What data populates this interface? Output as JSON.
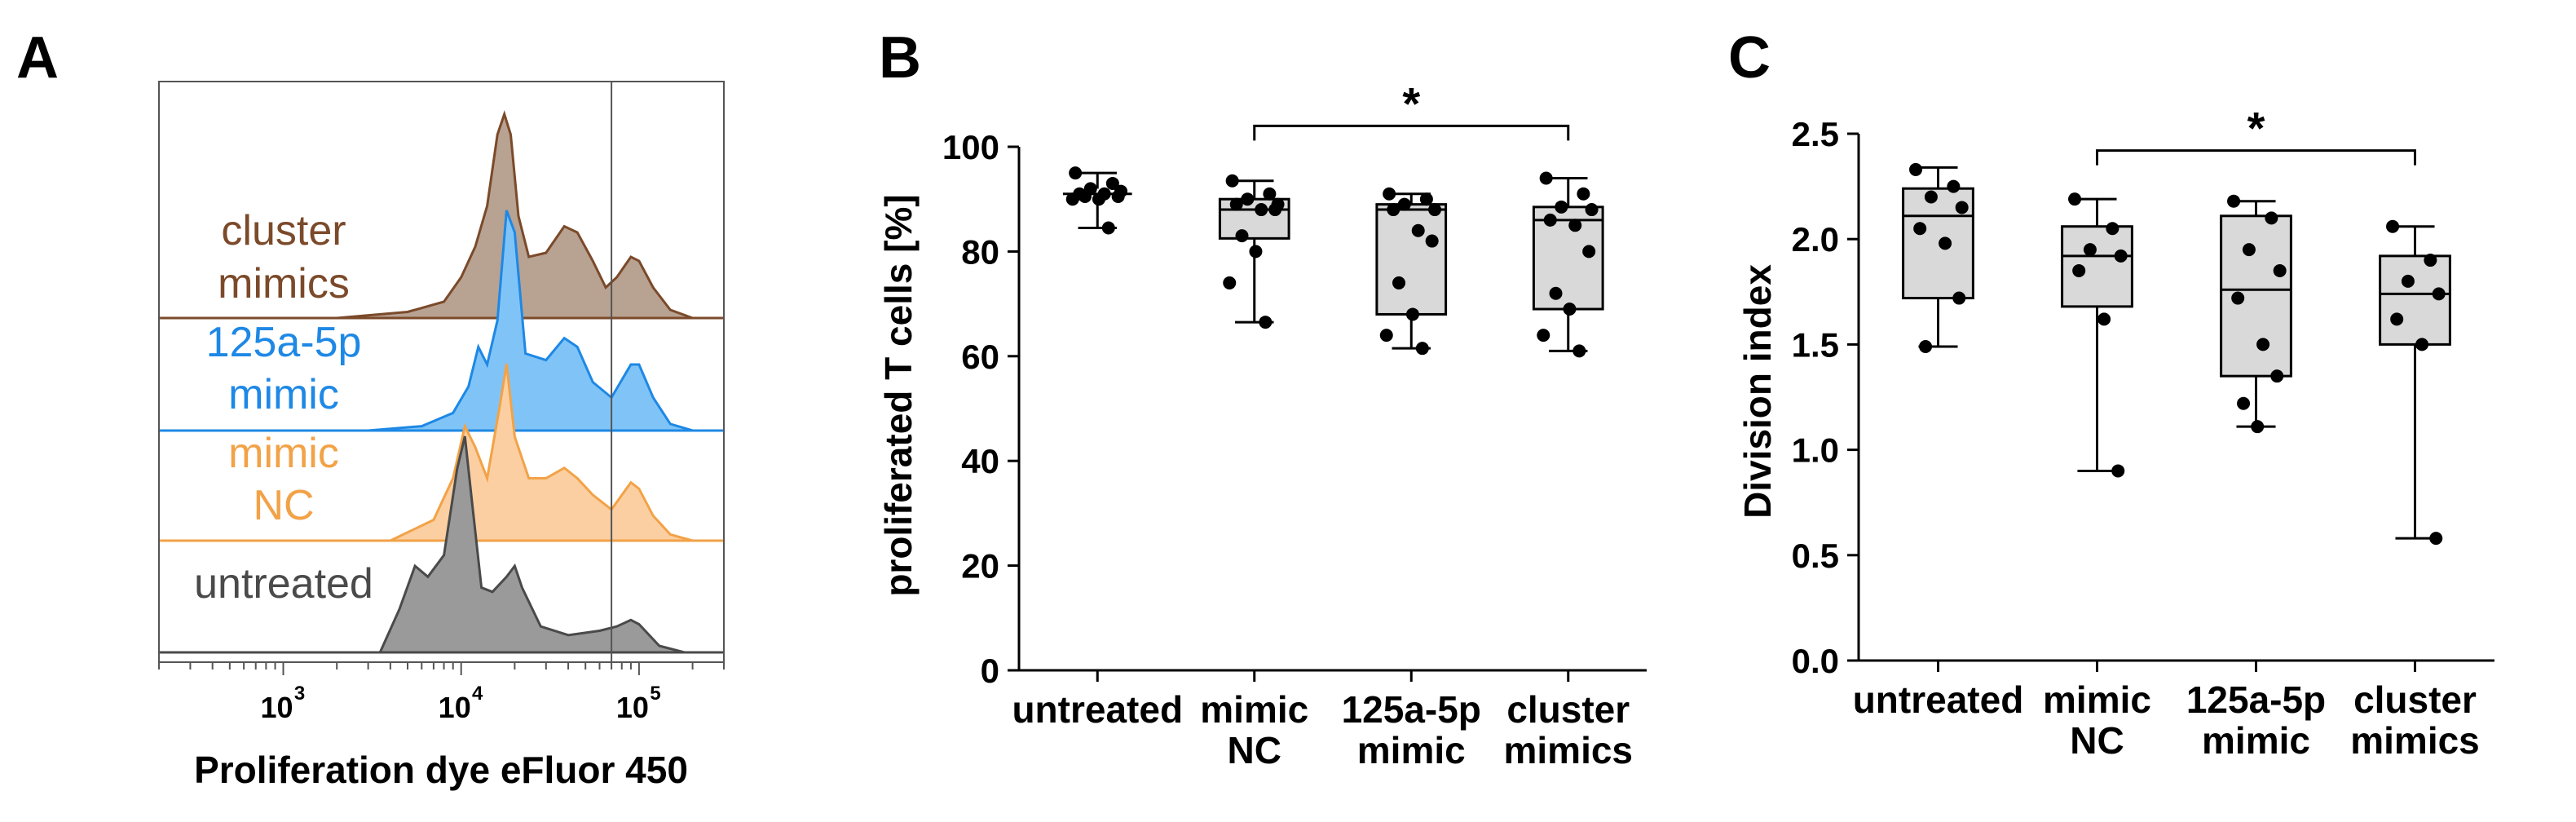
{
  "chart_data": [
    {
      "panel": "A",
      "type": "area",
      "xlabel": "Proliferation dye eFluor 450",
      "x_scale": "log",
      "xlim": [
        200,
        300000
      ],
      "x_ticks": [
        {
          "value": 1000,
          "base": "10",
          "exp": "3"
        },
        {
          "value": 10000,
          "base": "10",
          "exp": "4"
        },
        {
          "value": 100000,
          "base": "10",
          "exp": "5"
        }
      ],
      "gate_x": 70000,
      "series": [
        {
          "name_lines": [
            "cluster",
            "mimics"
          ],
          "color": "#7b4a2a",
          "fill": "#b8a292",
          "points": [
            [
              2000,
              0
            ],
            [
              5000,
              0.03
            ],
            [
              8000,
              0.08
            ],
            [
              10000,
              0.2
            ],
            [
              12000,
              0.35
            ],
            [
              14000,
              0.55
            ],
            [
              16000,
              0.9
            ],
            [
              17500,
              1.0
            ],
            [
              19000,
              0.9
            ],
            [
              21000,
              0.5
            ],
            [
              24000,
              0.3
            ],
            [
              30000,
              0.32
            ],
            [
              38000,
              0.45
            ],
            [
              45000,
              0.42
            ],
            [
              55000,
              0.28
            ],
            [
              65000,
              0.15
            ],
            [
              75000,
              0.2
            ],
            [
              90000,
              0.3
            ],
            [
              100000,
              0.28
            ],
            [
              120000,
              0.15
            ],
            [
              150000,
              0.04
            ],
            [
              200000,
              0
            ]
          ]
        },
        {
          "name_lines": [
            "125a-5p",
            "mimic"
          ],
          "color": "#1e88e5",
          "fill": "#80c4f7",
          "points": [
            [
              3000,
              0
            ],
            [
              6000,
              0.02
            ],
            [
              9000,
              0.08
            ],
            [
              11000,
              0.2
            ],
            [
              12500,
              0.38
            ],
            [
              14000,
              0.3
            ],
            [
              16000,
              0.5
            ],
            [
              18000,
              1.0
            ],
            [
              20000,
              0.9
            ],
            [
              23000,
              0.35
            ],
            [
              30000,
              0.32
            ],
            [
              38000,
              0.42
            ],
            [
              45000,
              0.38
            ],
            [
              55000,
              0.22
            ],
            [
              70000,
              0.15
            ],
            [
              90000,
              0.3
            ],
            [
              100000,
              0.3
            ],
            [
              120000,
              0.15
            ],
            [
              150000,
              0.03
            ],
            [
              200000,
              0
            ]
          ]
        },
        {
          "name_lines": [
            "mimic",
            "NC"
          ],
          "color": "#f2a247",
          "fill": "#fbcfa2",
          "points": [
            [
              4000,
              0
            ],
            [
              7000,
              0.1
            ],
            [
              9000,
              0.3
            ],
            [
              10500,
              0.55
            ],
            [
              12000,
              0.45
            ],
            [
              14000,
              0.3
            ],
            [
              16500,
              0.65
            ],
            [
              18000,
              0.85
            ],
            [
              20000,
              0.5
            ],
            [
              24000,
              0.3
            ],
            [
              30000,
              0.3
            ],
            [
              38000,
              0.35
            ],
            [
              45000,
              0.3
            ],
            [
              55000,
              0.22
            ],
            [
              70000,
              0.15
            ],
            [
              90000,
              0.28
            ],
            [
              100000,
              0.25
            ],
            [
              120000,
              0.12
            ],
            [
              150000,
              0.03
            ],
            [
              200000,
              0
            ]
          ]
        },
        {
          "name_lines": [
            "untreated"
          ],
          "color": "#4a4a4a",
          "fill": "#9a9a9a",
          "points": [
            [
              3500,
              0
            ],
            [
              4500,
              0.2
            ],
            [
              5500,
              0.4
            ],
            [
              6500,
              0.35
            ],
            [
              8000,
              0.45
            ],
            [
              9500,
              0.85
            ],
            [
              10500,
              1.0
            ],
            [
              11500,
              0.7
            ],
            [
              13000,
              0.3
            ],
            [
              15000,
              0.28
            ],
            [
              18000,
              0.35
            ],
            [
              20000,
              0.4
            ],
            [
              22000,
              0.3
            ],
            [
              28000,
              0.12
            ],
            [
              40000,
              0.08
            ],
            [
              60000,
              0.1
            ],
            [
              75000,
              0.12
            ],
            [
              90000,
              0.15
            ],
            [
              100000,
              0.13
            ],
            [
              130000,
              0.03
            ],
            [
              180000,
              0
            ]
          ]
        }
      ]
    },
    {
      "panel": "B",
      "type": "box",
      "ylabel": "proliferated T cells [%]",
      "ylim": [
        0,
        100
      ],
      "y_ticks": [
        0,
        20,
        40,
        60,
        80,
        100
      ],
      "categories": [
        [
          "untreated"
        ],
        [
          "mimic",
          "NC"
        ],
        [
          "125a-5p",
          "mimic"
        ],
        [
          "cluster",
          "mimics"
        ]
      ],
      "boxes": [
        {
          "min": 84.5,
          "q1": 90,
          "median": 91,
          "q3": 92,
          "max": 95,
          "box_visible": false,
          "points": [
            95,
            93,
            92,
            91.5,
            91,
            91,
            90.5,
            90.5,
            90,
            90,
            84.5
          ]
        },
        {
          "min": 66.5,
          "q1": 82.5,
          "median": 88,
          "q3": 90,
          "max": 93.5,
          "box_visible": true,
          "points": [
            93.5,
            91,
            90,
            89,
            89,
            88,
            88,
            83,
            80,
            74,
            66.5
          ]
        },
        {
          "min": 61.5,
          "q1": 68,
          "median": 88,
          "q3": 89,
          "max": 91,
          "box_visible": true,
          "points": [
            91,
            90,
            89,
            88,
            88,
            84,
            82,
            74,
            68,
            64,
            61.5
          ]
        },
        {
          "min": 61,
          "q1": 69,
          "median": 86,
          "q3": 88.5,
          "max": 94,
          "box_visible": true,
          "points": [
            94,
            91,
            88.5,
            88,
            86,
            85,
            80,
            72,
            69,
            64,
            61
          ]
        }
      ],
      "significance": {
        "from": 1,
        "to": 3,
        "label": "*",
        "y": 104
      }
    },
    {
      "panel": "C",
      "type": "box",
      "ylabel": "Division index",
      "ylim": [
        0,
        2.5
      ],
      "y_ticks": [
        "0.0",
        "0.5",
        "1.0",
        "1.5",
        "2.0",
        "2.5"
      ],
      "categories": [
        [
          "untreated"
        ],
        [
          "mimic",
          "NC"
        ],
        [
          "125a-5p",
          "mimic"
        ],
        [
          "cluster",
          "mimics"
        ]
      ],
      "boxes": [
        {
          "min": 1.49,
          "q1": 1.72,
          "median": 2.11,
          "q3": 2.24,
          "max": 2.34,
          "box_visible": true,
          "points": [
            2.33,
            2.25,
            2.2,
            2.15,
            2.05,
            1.98,
            1.72,
            1.49
          ]
        },
        {
          "min": 0.9,
          "q1": 1.68,
          "median": 1.92,
          "q3": 2.06,
          "max": 2.19,
          "box_visible": true,
          "points": [
            2.19,
            2.05,
            1.95,
            1.92,
            1.85,
            1.62,
            0.9
          ]
        },
        {
          "min": 1.11,
          "q1": 1.35,
          "median": 1.76,
          "q3": 2.11,
          "max": 2.18,
          "box_visible": true,
          "points": [
            2.18,
            2.1,
            1.95,
            1.85,
            1.72,
            1.5,
            1.35,
            1.22,
            1.11
          ]
        },
        {
          "min": 0.58,
          "q1": 1.5,
          "median": 1.74,
          "q3": 1.92,
          "max": 2.06,
          "box_visible": true,
          "points": [
            2.06,
            1.9,
            1.8,
            1.74,
            1.62,
            1.5,
            0.58
          ]
        }
      ],
      "significance": {
        "from": 1,
        "to": 3,
        "label": "*",
        "y": 2.42
      }
    }
  ],
  "panel_letters": {
    "a": "A",
    "b": "B",
    "c": "C"
  }
}
